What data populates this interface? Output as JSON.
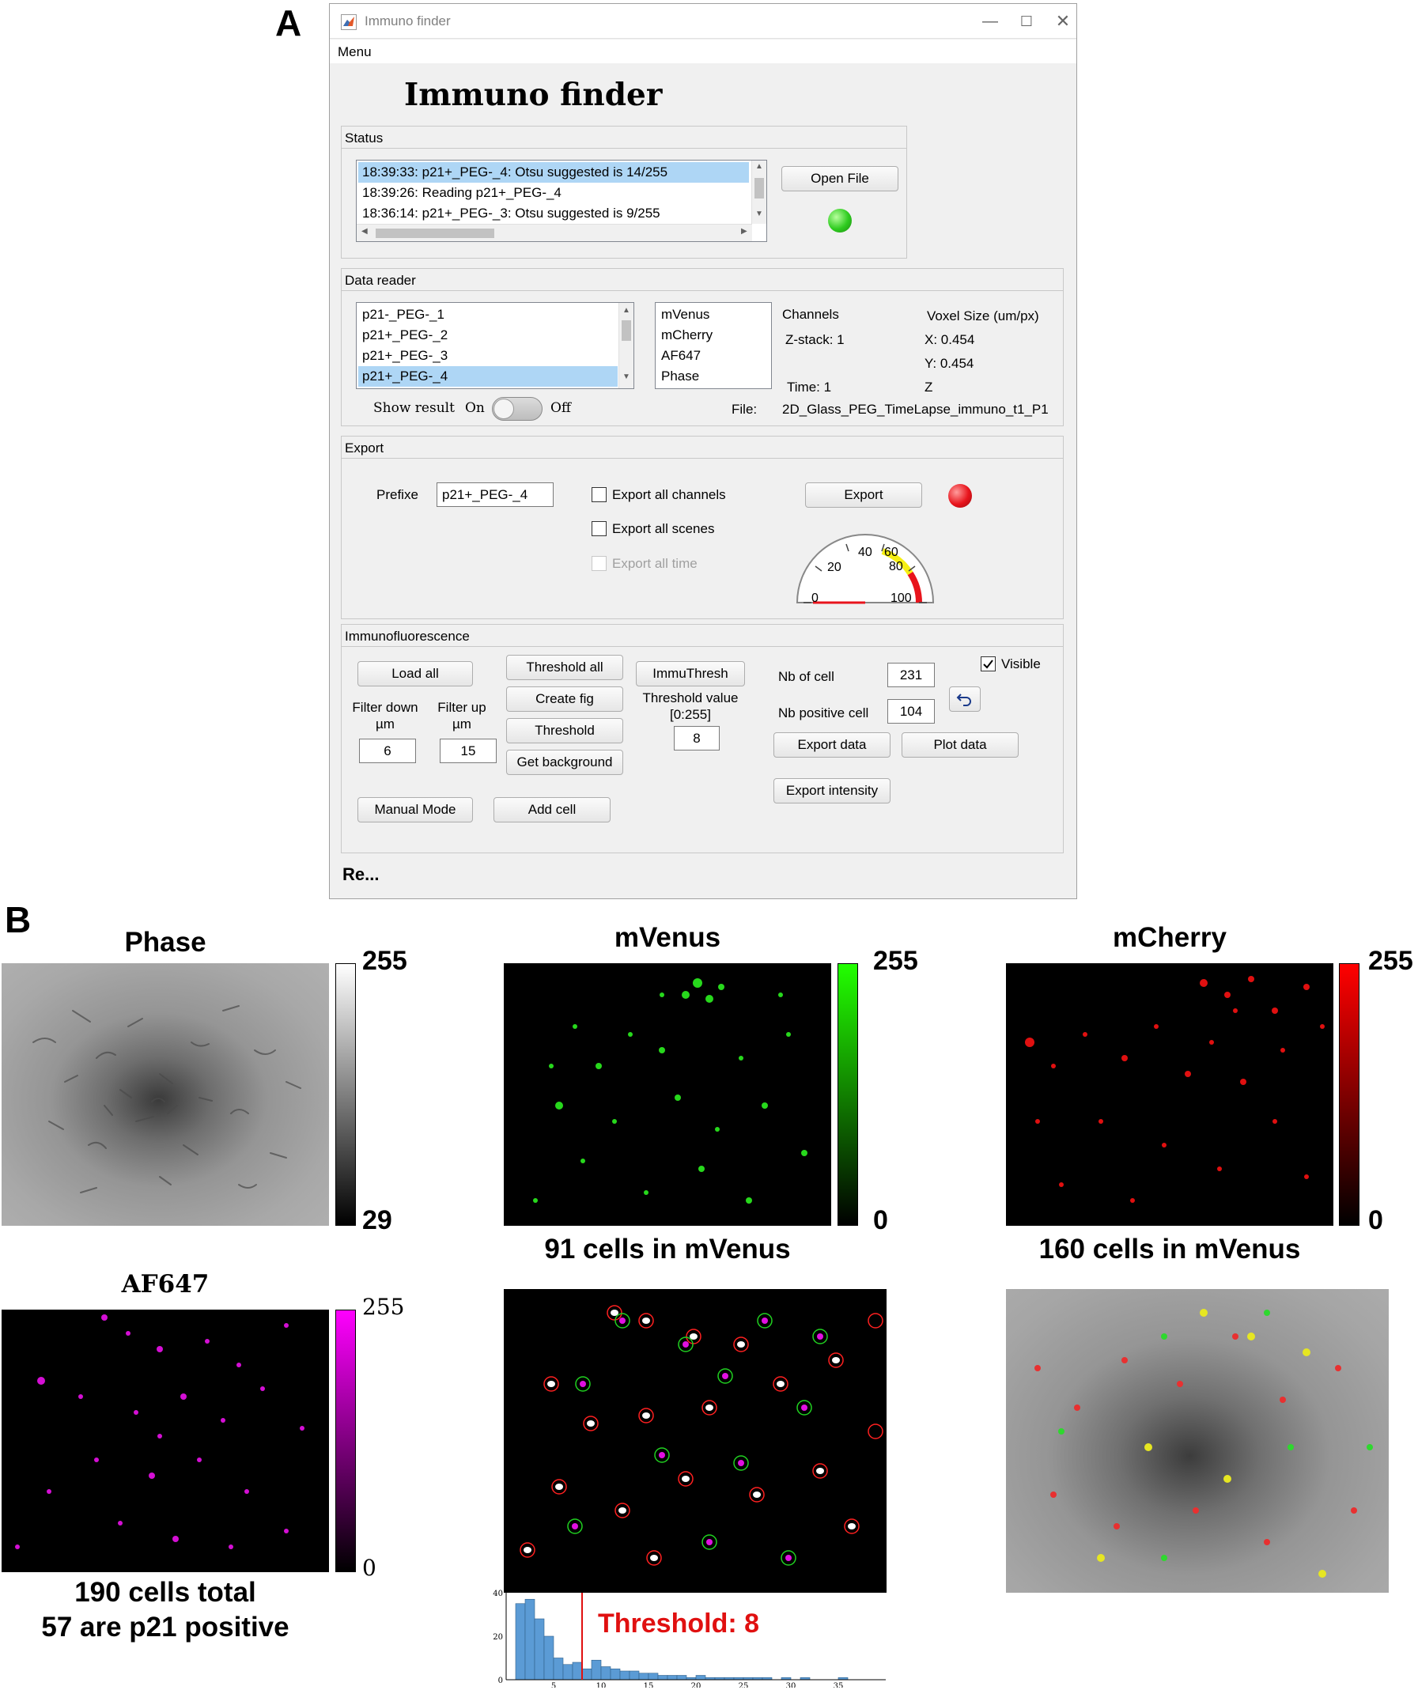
{
  "panels": {
    "a": "A",
    "b": "B"
  },
  "window": {
    "title": "Immuno finder",
    "menu": "Menu",
    "app_title": "Immuno finder",
    "status_bar": "Re..."
  },
  "status": {
    "title": "Status",
    "log": [
      "18:39:33: p21+_PEG-_4: Otsu suggested is 14/255",
      "18:39:26: Reading p21+_PEG-_4",
      "18:36:14: p21+_PEG-_3: Otsu suggested is 9/255"
    ],
    "selected_index": 0,
    "open_button": "Open File",
    "lamp_color": "#2ecc1f"
  },
  "data_reader": {
    "title": "Data reader",
    "files": [
      "p21-_PEG-_1",
      "p21+_PEG-_2",
      "p21+_PEG-_3",
      "p21+_PEG-_4"
    ],
    "selected_index": 3,
    "channels_list": [
      "mVenus",
      "mCherry",
      "AF647",
      "Phase"
    ],
    "channels_label": "Channels",
    "zstack_label": "Z-stack: 1",
    "time_label": "Time: 1",
    "voxel_label": "Voxel Size (um/px)",
    "voxel_x": "X: 0.454",
    "voxel_y": "Y: 0.454",
    "voxel_z": "Z",
    "show_result_label": "Show result",
    "toggle_on": "On",
    "toggle_off": "Off",
    "file_label": "File:",
    "file_name": "2D_Glass_PEG_TimeLapse_immuno_t1_P1"
  },
  "export": {
    "title": "Export",
    "prefix_label": "Prefixe",
    "prefix_value": "p21+_PEG-_4",
    "all_channels": "Export all channels",
    "all_scenes": "Export all scenes",
    "all_time": "Export all time",
    "export_button": "Export",
    "lamp_color": "#e8141c",
    "gauge": {
      "ticks": [
        "0",
        "20",
        "40",
        "60",
        "80",
        "100"
      ],
      "value": 0
    }
  },
  "immuno": {
    "title": "Immunofluorescence",
    "load_all": "Load all",
    "threshold_all": "Threshold all",
    "create_fig": "Create fig",
    "threshold": "Threshold",
    "get_background": "Get background",
    "immuthresh": "ImmuThresh",
    "threshold_value_label_1": "Threshold value",
    "threshold_value_label_2": "[0:255]",
    "threshold_value": "8",
    "filter_down_label_1": "Filter down",
    "filter_down_label_2": "µm",
    "filter_up_label_1": "Filter up",
    "filter_up_label_2": "µm",
    "filter_down": "6",
    "filter_up": "15",
    "nb_cell_label": "Nb of cell",
    "nb_cell": "231",
    "nb_positive_label": "Nb positive cell",
    "nb_positive": "104",
    "visible_label": "Visible",
    "visible_checked": true,
    "export_data": "Export data",
    "plot_data": "Plot data",
    "export_intensity": "Export intensity",
    "manual_mode": "Manual Mode",
    "add_cell": "Add cell",
    "undo_icon": "undo-icon"
  },
  "figures": {
    "phase": {
      "title": "Phase",
      "cbar_max": "255",
      "cbar_min": "29"
    },
    "mvenus": {
      "title": "mVenus",
      "cbar_max": "255",
      "cbar_min": "0",
      "caption": "91 cells in mVenus"
    },
    "mcherry": {
      "title": "mCherry",
      "cbar_max": "255",
      "cbar_min": "0",
      "caption": "160 cells in mVenus"
    },
    "af647": {
      "title": "AF647",
      "cbar_max": "255",
      "cbar_min": "0",
      "caption_1": "190 cells total",
      "caption_2": "57 are p21 positive"
    },
    "threshold_label": "Threshold: 8"
  },
  "chart_data": {
    "type": "bar",
    "title": "",
    "xlabel": "",
    "ylabel": "",
    "xlim": [
      0,
      40
    ],
    "ylim": [
      0,
      40
    ],
    "xticks": [
      "5",
      "10",
      "15",
      "20",
      "25",
      "30",
      "35"
    ],
    "yticks": [
      "0",
      "20",
      "40"
    ],
    "threshold": 8,
    "bins": [
      1,
      2,
      3,
      4,
      5,
      6,
      7,
      8,
      9,
      10,
      11,
      12,
      13,
      14,
      15,
      16,
      17,
      18,
      19,
      20,
      21,
      22,
      23,
      24,
      25,
      26,
      27,
      28,
      29,
      30,
      31,
      32,
      33,
      34,
      35,
      36,
      37,
      38
    ],
    "values": [
      0,
      35,
      37,
      28,
      20,
      10,
      7,
      8,
      5,
      9,
      6,
      5,
      4,
      4,
      3,
      3,
      2,
      2,
      2,
      1,
      2,
      1,
      1,
      1,
      1,
      1,
      1,
      1,
      0,
      1,
      0,
      1,
      0,
      0,
      0,
      1,
      0,
      0
    ]
  }
}
